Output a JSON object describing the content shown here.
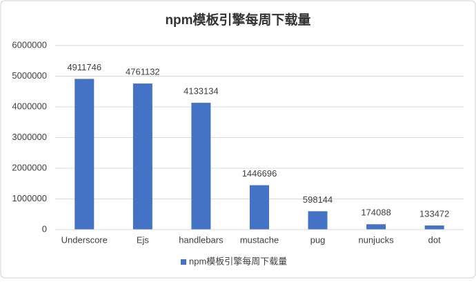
{
  "chart_data": {
    "type": "bar",
    "title": "npm模板引擎每周下载量",
    "categories": [
      "Underscore",
      "Ejs",
      "handlebars",
      "mustache",
      "pug",
      "nunjucks",
      "dot"
    ],
    "series": [
      {
        "name": "npm模板引擎每周下载量",
        "color": "#4472c4",
        "values": [
          4911746,
          4761132,
          4133134,
          1446696,
          598144,
          174088,
          133472
        ]
      }
    ],
    "ylim": [
      0,
      6000000
    ],
    "yticks": [
      0,
      1000000,
      2000000,
      3000000,
      4000000,
      5000000,
      6000000
    ],
    "grid": true,
    "legend": "bottom",
    "data_labels": true
  }
}
